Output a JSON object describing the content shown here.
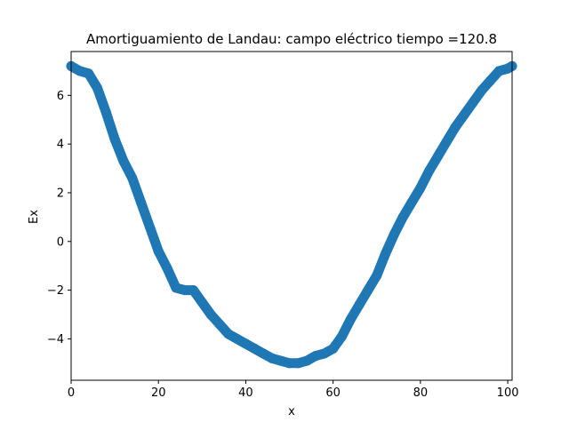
{
  "chart_data": {
    "type": "line",
    "title": "Amortiguamiento de Landau: campo eléctrico  tiempo =120.8",
    "xlabel": "x",
    "ylabel": "Ex",
    "xlim": [
      0,
      101
    ],
    "ylim": [
      -5.7,
      7.8
    ],
    "xticks": [
      0,
      20,
      40,
      60,
      80,
      100
    ],
    "yticks": [
      -4,
      -2,
      0,
      2,
      4,
      6
    ],
    "grid": false,
    "line_color": "#1f77b4",
    "series": [
      {
        "x": [
          0,
          2,
          4,
          6,
          8,
          10,
          12,
          14,
          16,
          18,
          20,
          22,
          24,
          26,
          28,
          30,
          32,
          34,
          36,
          38,
          40,
          42,
          44,
          46,
          48,
          50,
          52,
          54,
          56,
          58,
          60,
          62,
          64,
          66,
          68,
          70,
          72,
          74,
          76,
          78,
          80,
          82,
          84,
          86,
          88,
          90,
          92,
          94,
          96,
          98,
          100,
          101
        ],
        "y": [
          7.2,
          7.0,
          6.9,
          6.3,
          5.3,
          4.2,
          3.3,
          2.6,
          1.6,
          0.6,
          -0.4,
          -1.1,
          -1.9,
          -2.0,
          -2.0,
          -2.5,
          -3.0,
          -3.4,
          -3.8,
          -4.0,
          -4.2,
          -4.4,
          -4.6,
          -4.8,
          -4.9,
          -5.0,
          -5.0,
          -4.9,
          -4.7,
          -4.6,
          -4.4,
          -3.9,
          -3.2,
          -2.6,
          -2.0,
          -1.4,
          -0.5,
          0.3,
          1.0,
          1.6,
          2.2,
          2.9,
          3.5,
          4.1,
          4.7,
          5.2,
          5.7,
          6.2,
          6.6,
          7.0,
          7.1,
          7.2
        ]
      }
    ]
  }
}
